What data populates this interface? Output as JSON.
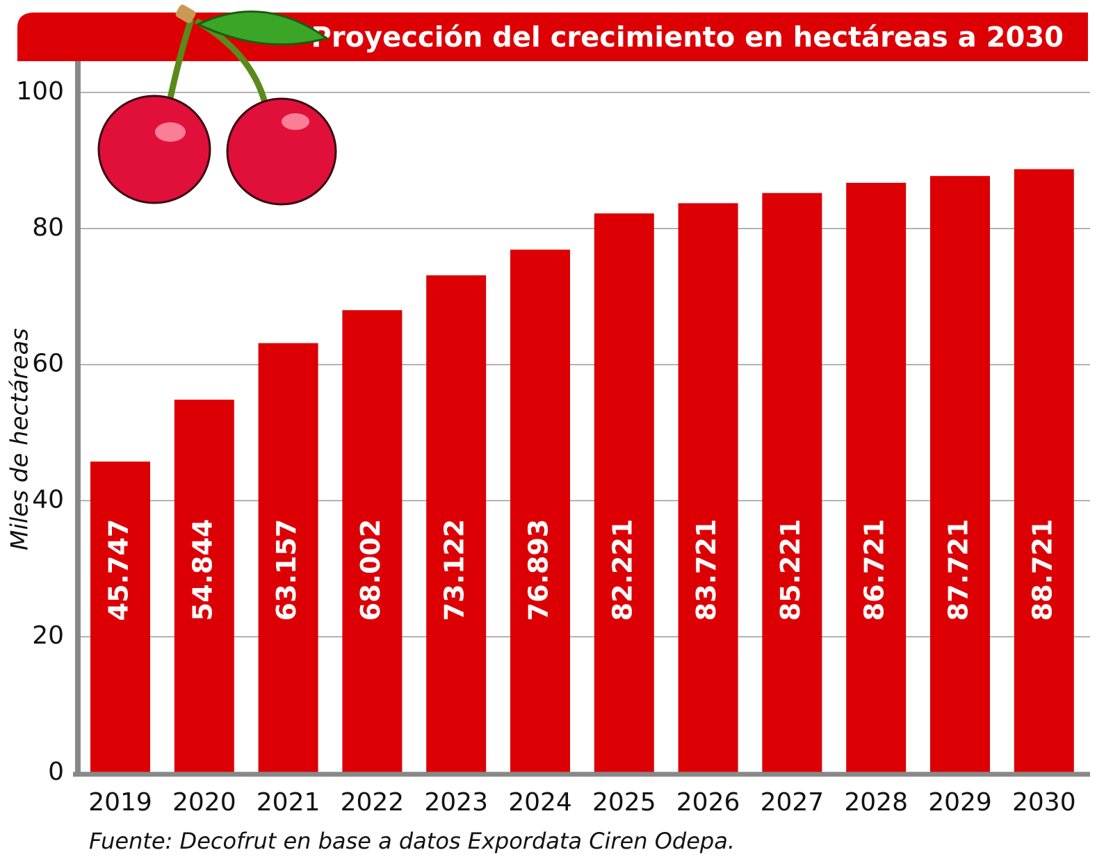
{
  "chart_data": {
    "type": "bar",
    "title": "Proyección del crecimiento en hectáreas a 2030",
    "y_label": "Miles de hectáreas",
    "source": "Fuente: Decofrut en base a datos Expordata Ciren Odepa.",
    "categories": [
      "2019",
      "2020",
      "2021",
      "2022",
      "2023",
      "2024",
      "2025",
      "2026",
      "2027",
      "2028",
      "2029",
      "2030"
    ],
    "values": [
      45.747,
      54.844,
      63.157,
      68.002,
      73.122,
      76.893,
      82.221,
      83.721,
      85.221,
      86.721,
      87.721,
      88.721
    ],
    "color": "#dc0005",
    "ylim": [
      0,
      100
    ],
    "yticks": [
      0,
      20,
      40,
      60,
      80,
      100
    ],
    "grid": true
  }
}
